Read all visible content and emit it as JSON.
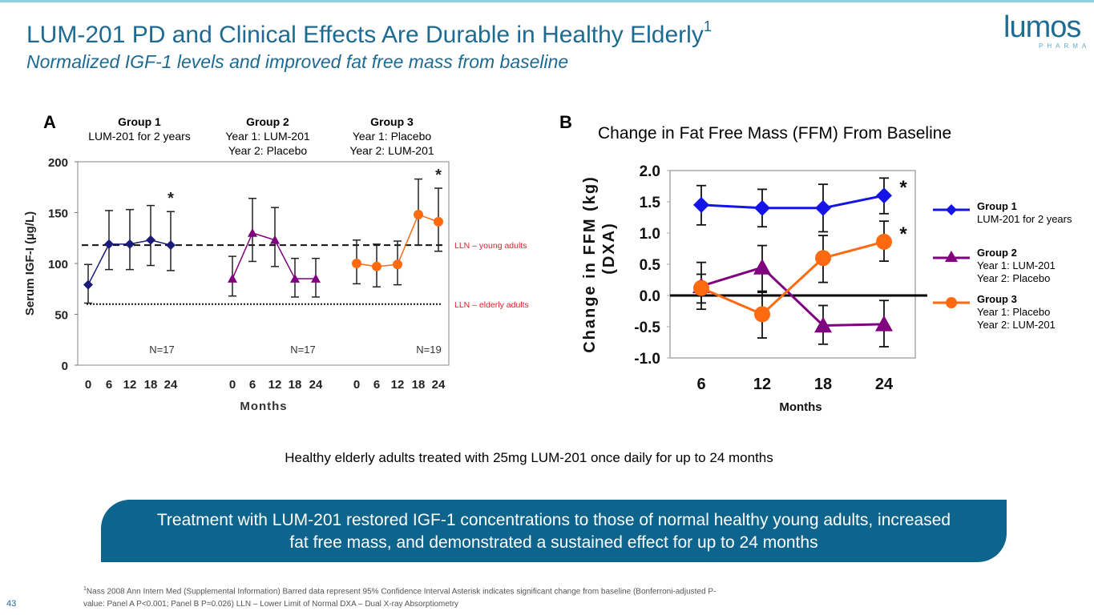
{
  "header": {
    "title": "LUM-201 PD and Clinical Effects Are Durable in Healthy Elderly",
    "title_superscript": "1",
    "subtitle": "Normalized IGF-1 levels and improved fat free mass from baseline",
    "logo_word": "lumos",
    "logo_sub": "PHARMA"
  },
  "colors": {
    "brand": "#1d6a93",
    "callout_bg": "#0d658d",
    "group1_A": "#1a1a7a",
    "group1_B": "#1414e6",
    "group2": "#800080",
    "group3": "#ff6a10",
    "lln_label": "#e0202a"
  },
  "panelA": {
    "letter": "A",
    "groups": [
      {
        "name": "Group 1",
        "desc": [
          "LUM-201 for 2 years"
        ]
      },
      {
        "name": "Group 2",
        "desc": [
          "Year 1: LUM-201",
          "Year 2: Placebo"
        ]
      },
      {
        "name": "Group 3",
        "desc": [
          "Year 1: Placebo",
          "Year 2: LUM-201"
        ]
      }
    ]
  },
  "panelB": {
    "letter": "B",
    "title": "Change in Fat Free Mass (FFM) From Baseline"
  },
  "legend": [
    {
      "name": "Group 1",
      "lines": [
        "LUM-201 for 2 years"
      ]
    },
    {
      "name": "Group 2",
      "lines": [
        "Year 1: LUM-201",
        "Year 2: Placebo"
      ]
    },
    {
      "name": "Group 3",
      "lines": [
        "Year 1: Placebo",
        "Year 2: LUM-201"
      ]
    }
  ],
  "chart_data": [
    {
      "type": "line",
      "panel": "A",
      "title": "",
      "xlabel": "Months",
      "ylabel": "Serum IGF-I (µg/L)",
      "ylim": [
        0,
        200
      ],
      "yticks": [
        "0",
        "50",
        "100",
        "150",
        "200"
      ],
      "x": [
        0,
        6,
        12,
        18,
        24
      ],
      "xtick_labels": [
        "0",
        "6",
        "12",
        "18",
        "24"
      ],
      "reference_lines": [
        {
          "label": "LLN – young adults",
          "value": 118,
          "style": "dashed"
        },
        {
          "label": "LLN – elderly adults",
          "value": 60,
          "style": "dotted"
        }
      ],
      "series": [
        {
          "name": "Group 1",
          "marker": "diamond",
          "n_label": "N=17",
          "values": [
            79,
            119,
            119,
            123,
            118
          ],
          "ci_low": [
            61,
            94,
            94,
            98,
            93
          ],
          "ci_high": [
            99,
            152,
            153,
            157,
            151
          ],
          "significant": [
            false,
            false,
            false,
            false,
            true
          ]
        },
        {
          "name": "Group 2",
          "marker": "triangle",
          "n_label": "N=17",
          "values": [
            85,
            130,
            123,
            85,
            85
          ],
          "ci_low": [
            68,
            102,
            97,
            67,
            67
          ],
          "ci_high": [
            107,
            164,
            155,
            105,
            105
          ],
          "significant": [
            false,
            false,
            false,
            false,
            false
          ]
        },
        {
          "name": "Group 3",
          "marker": "circle",
          "n_label": "N=19",
          "values": [
            100,
            97,
            99,
            148,
            141
          ],
          "ci_low": [
            80,
            77,
            79,
            118,
            112
          ],
          "ci_high": [
            123,
            119,
            122,
            183,
            174
          ],
          "significant": [
            false,
            false,
            false,
            false,
            true
          ]
        }
      ],
      "significance_marker": "*"
    },
    {
      "type": "line",
      "panel": "B",
      "title": "Change in Fat Free Mass (FFM) From Baseline",
      "xlabel": "Months",
      "ylabel": "Change in FFM (kg) (DXA)",
      "ylabel_lines": [
        "Change in FFM (kg)",
        "(DXA)"
      ],
      "ylim": [
        -1.0,
        2.0
      ],
      "yticks": [
        "-1.0",
        "-0.5",
        "0.0",
        "0.5",
        "1.0",
        "1.5",
        "2.0"
      ],
      "categories": [
        "6",
        "12",
        "18",
        "24"
      ],
      "series": [
        {
          "name": "Group 1",
          "marker": "diamond",
          "values": [
            1.45,
            1.4,
            1.4,
            1.6
          ],
          "ci_low": [
            1.13,
            1.1,
            1.02,
            1.31
          ],
          "ci_high": [
            1.76,
            1.7,
            1.78,
            1.88
          ],
          "significant": [
            false,
            false,
            false,
            true
          ]
        },
        {
          "name": "Group 2",
          "marker": "triangle",
          "values": [
            0.15,
            0.45,
            -0.48,
            -0.46
          ],
          "ci_low": [
            -0.12,
            0.07,
            -0.78,
            -0.82
          ],
          "ci_high": [
            0.53,
            0.8,
            -0.16,
            -0.08
          ],
          "significant": [
            false,
            false,
            false,
            false
          ]
        },
        {
          "name": "Group 3",
          "marker": "circle",
          "values": [
            0.12,
            -0.3,
            0.6,
            0.86
          ],
          "ci_low": [
            -0.22,
            -0.68,
            0.21,
            0.55
          ],
          "ci_high": [
            0.34,
            0.05,
            0.96,
            1.19
          ],
          "significant": [
            false,
            false,
            false,
            true
          ]
        }
      ],
      "significance_marker": "*"
    }
  ],
  "note": "Healthy elderly adults treated with 25mg LUM-201 once daily for up to 24 months",
  "callout": {
    "line1": "Treatment with LUM-201 restored IGF-1 concentrations to those of normal healthy young adults, increased",
    "line2": "fat free mass, and demonstrated a sustained effect for up to 24 months"
  },
  "footnote": {
    "sup": "1",
    "line1": "Nass 2008 Ann Intern Med (Supplemental Information)    Barred data represent 95% Confidence Interval    Asterisk indicates significant change from baseline (Bonferroni-adjusted P-",
    "line2": "value: Panel A P<0.001; Panel B P=0.026)    LLN – Lower Limit of Normal   DXA – Dual X-ray Absorptiometry"
  },
  "page_number": "43"
}
